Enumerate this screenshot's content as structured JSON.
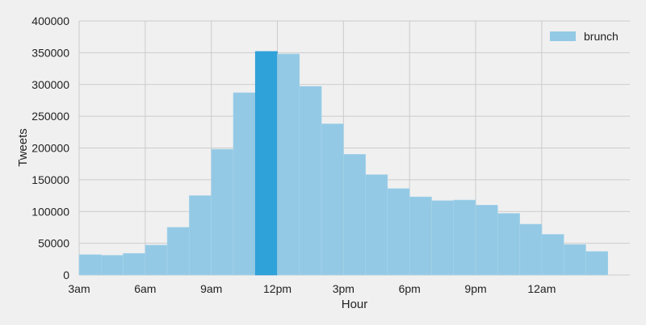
{
  "chart_data": {
    "type": "bar",
    "title": "",
    "xlabel": "Hour",
    "ylabel": "Tweets",
    "ylim": [
      0,
      400000
    ],
    "yticks": [
      0,
      50000,
      100000,
      150000,
      200000,
      250000,
      300000,
      350000,
      400000
    ],
    "xticks": [
      "3am",
      "6am",
      "9am",
      "12pm",
      "3pm",
      "6pm",
      "9pm",
      "12am"
    ],
    "grid": true,
    "legend_position": "top-right",
    "highlight_index": 8,
    "colors": {
      "bar": "#93c9e5",
      "highlight": "#30a2da",
      "grid": "#cbcbcb",
      "background": "#f0f0f0"
    },
    "series": [
      {
        "name": "brunch",
        "values": [
          32000,
          31000,
          34000,
          47000,
          75000,
          125000,
          198000,
          287000,
          352000,
          348000,
          297000,
          238000,
          190000,
          158000,
          136000,
          123000,
          117000,
          118000,
          110000,
          97000,
          80000,
          64000,
          48000,
          37000
        ]
      }
    ]
  }
}
